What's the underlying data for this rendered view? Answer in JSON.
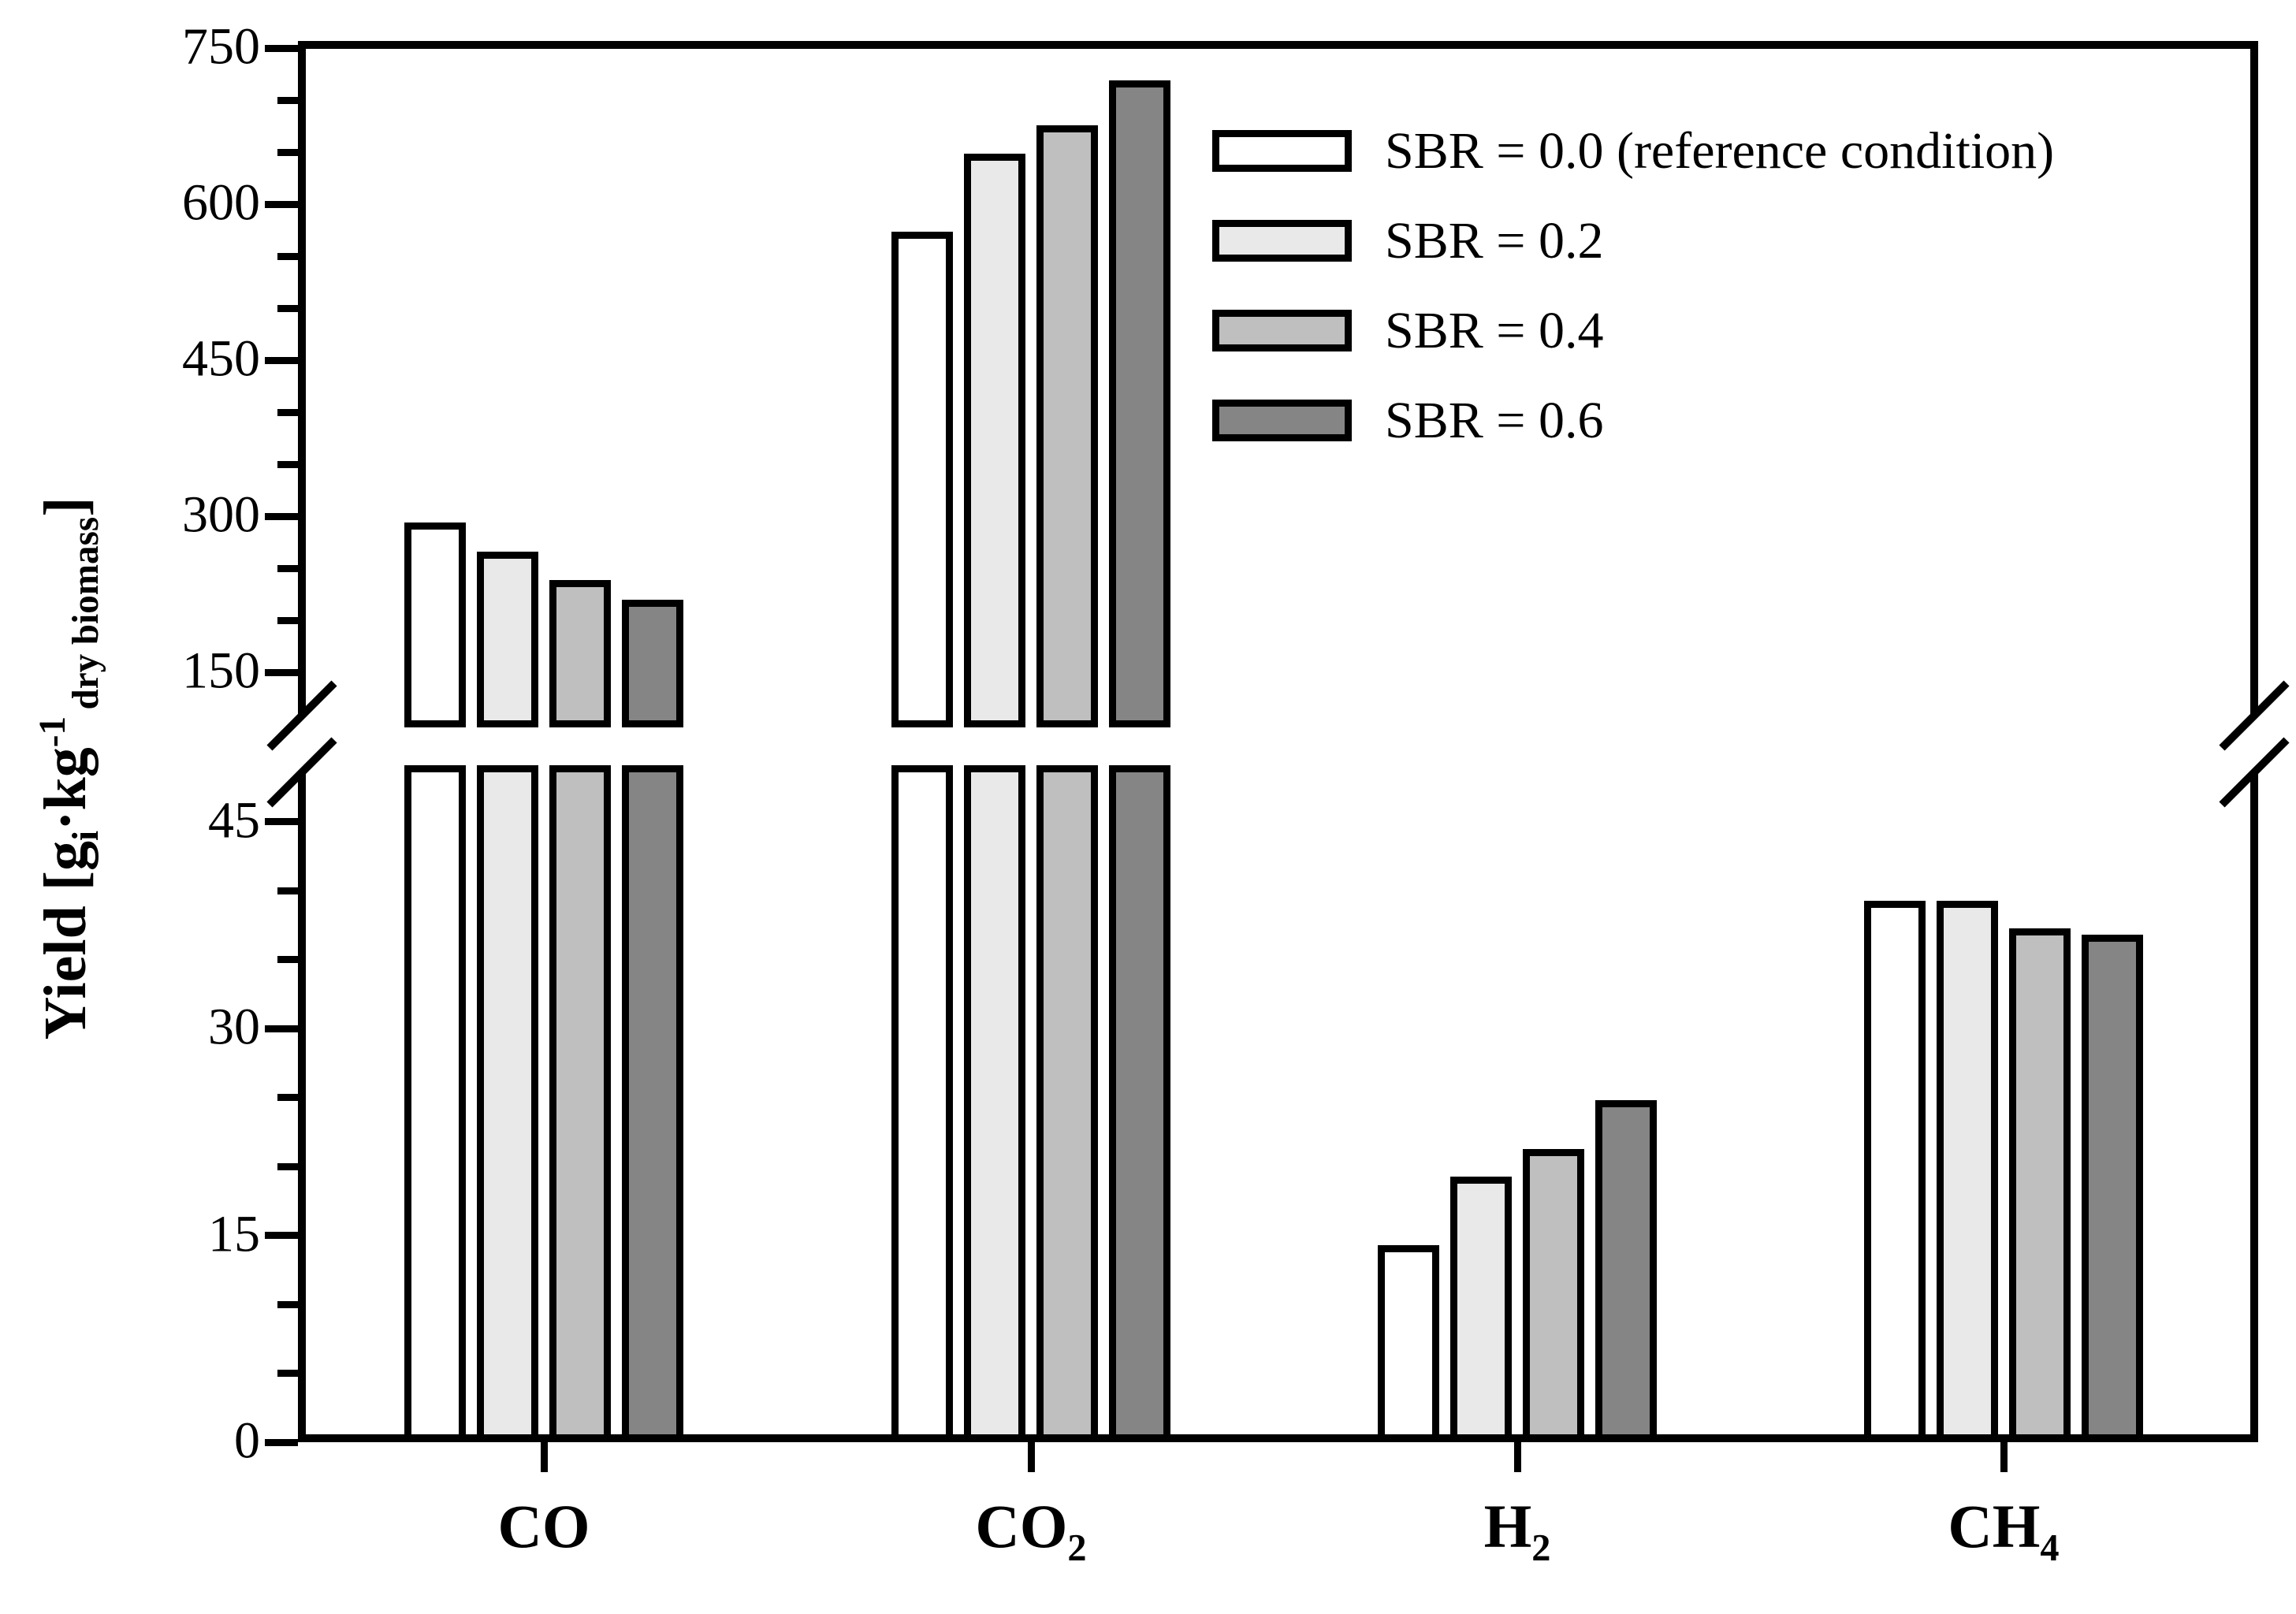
{
  "chart_data": {
    "type": "bar",
    "title": "",
    "ylabel": "Yield [g_i · kg^-1 _dry biomass]",
    "ylabel_segments": [
      {
        "text": "Yield [g",
        "style": "normal"
      },
      {
        "text": "i",
        "style": "sub"
      },
      {
        "text": "·kg",
        "style": "normal"
      },
      {
        "text": "-1",
        "style": "sup"
      },
      {
        "text": "dry biomass",
        "style": "sub-spaced"
      },
      {
        "text": "]",
        "style": "normal"
      }
    ],
    "categories": [
      {
        "text": "CO",
        "sub": ""
      },
      {
        "text": "CO",
        "sub": "2"
      },
      {
        "text": "H",
        "sub": "2"
      },
      {
        "text": "CH",
        "sub": "4"
      }
    ],
    "series": [
      {
        "name": "SBR = 0.0 (reference condition)",
        "color": "#ffffff",
        "values": [
          290,
          570,
          14,
          39
        ]
      },
      {
        "name": "SBR = 0.2",
        "color": "#e9e9e9",
        "values": [
          262,
          645,
          19,
          39
        ]
      },
      {
        "name": "SBR = 0.4",
        "color": "#bfbfbf",
        "values": [
          235,
          672,
          21,
          37
        ]
      },
      {
        "name": "SBR = 0.6",
        "color": "#858585",
        "values": [
          216,
          715,
          24.5,
          36.5
        ]
      }
    ],
    "y_axis": {
      "axis_break": true,
      "lower_panel": {
        "range": [
          0,
          48
        ],
        "major_ticks": [
          0,
          15,
          30,
          45
        ],
        "minor_step": 5
      },
      "upper_panel": {
        "range": [
          103,
          750
        ],
        "major_ticks": [
          150,
          300,
          450,
          600,
          750
        ],
        "minor_step": 50
      }
    },
    "x_axis": {
      "tick_marks_at_group_centers": true
    },
    "legend_position": "upper-right",
    "grid": false,
    "bar_edge_color": "#000000",
    "background": "#ffffff"
  }
}
